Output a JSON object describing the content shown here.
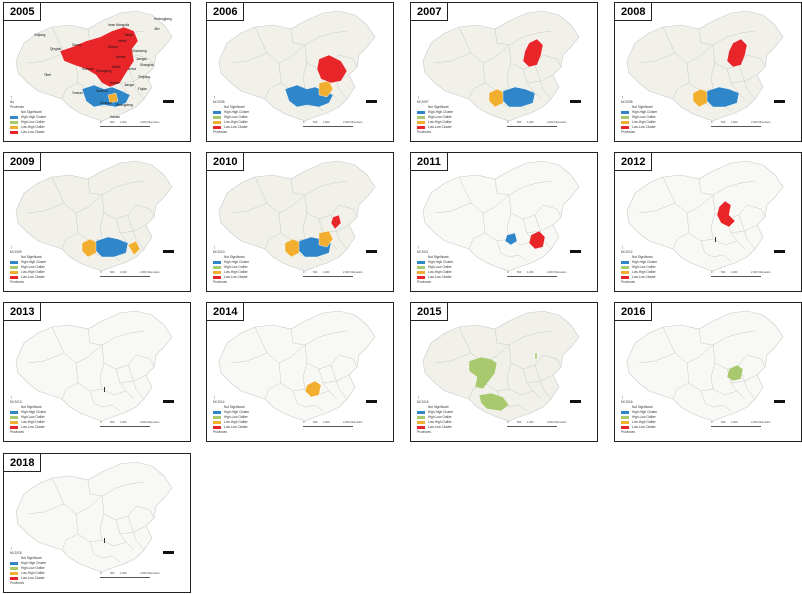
{
  "colors": {
    "base": "#f1f1ea",
    "base_faint": "#f8f8f5",
    "border": "#c9c9c9",
    "high_high": "#2f86c8",
    "low_high": "#f2ae2f",
    "high_low": "#a8c96e",
    "low_low": "#e8262a"
  },
  "legend_2005": {
    "header": "No",
    "sub": "Provinces",
    "items": [
      "Not Significant",
      "High-High Cluster",
      "High-Low Outlier",
      "Low-High Outlier",
      "Low-Low Cluster"
    ]
  },
  "legend_common": {
    "items": [
      "Not Significant",
      "High-High Cluster",
      "High-Low Outlier",
      "Low-High Outlier",
      "Low-Low Cluster"
    ],
    "footer": "Provinces"
  },
  "scale": {
    "ticks": [
      "0",
      "500",
      "1,000",
      "2,000 Kilometers"
    ]
  },
  "panels": [
    {
      "year": "2005",
      "legend_header": "No",
      "clusters": [
        "hh_sw",
        "low_high_small",
        "ll_north_big"
      ]
    },
    {
      "year": "2006",
      "legend_header": "MI 2006",
      "clusters": [
        "hh_sw",
        "lh_center",
        "ll_east_big"
      ]
    },
    {
      "year": "2007",
      "legend_header": "MI 2007",
      "clusters": [
        "lh_west",
        "hh_south",
        "ll_ne"
      ]
    },
    {
      "year": "2008",
      "legend_header": "MI 2008",
      "clusters": [
        "lh_west",
        "hh_south",
        "ll_ne"
      ]
    },
    {
      "year": "2009",
      "legend_header": "MI 2009",
      "clusters": [
        "lh_west",
        "hh_south",
        "lh_se"
      ]
    },
    {
      "year": "2010",
      "legend_header": "MI 2010",
      "clusters": [
        "lh_west",
        "hh_south",
        "lh_center",
        "ll_east_small"
      ]
    },
    {
      "year": "2011",
      "legend_header": "MI 2011",
      "clusters": [
        "hh_mid",
        "ll_mid_east"
      ]
    },
    {
      "year": "2012",
      "legend_header": "MI 2012",
      "clusters": [
        "ll_north_center"
      ]
    },
    {
      "year": "2013",
      "legend_header": "MI 2013",
      "clusters": []
    },
    {
      "year": "2014",
      "legend_header": "MI 2014",
      "clusters": [
        "lh_center_small"
      ]
    },
    {
      "year": "2015",
      "legend_header": "MI 2015",
      "clusters": [
        "hl_north",
        "hl_south",
        "hl_east_dot"
      ]
    },
    {
      "year": "2016",
      "legend_header": "MI 2016",
      "clusters": [
        "hl_east"
      ]
    },
    {
      "year": "2018",
      "legend_header": "MI 2018",
      "clusters": []
    }
  ],
  "place_labels_2005": [
    "Heilongjiang",
    "Jilin",
    "Xinjiang",
    "Inner Mongolia",
    "Qinghai",
    "Gansu",
    "Tianjin",
    "Hebei",
    "Shanxi",
    "Shandong",
    "Henan",
    "Jiangsu",
    "Shanghai",
    "Sichuan",
    "Hubei",
    "Anhui",
    "Chongqing",
    "Zhejiang",
    "Hunan",
    "Jiangxi",
    "Fujian",
    "Guizhou",
    "Yunnan",
    "Guangxi",
    "Guangdong",
    "Hainan",
    "Tibet"
  ]
}
